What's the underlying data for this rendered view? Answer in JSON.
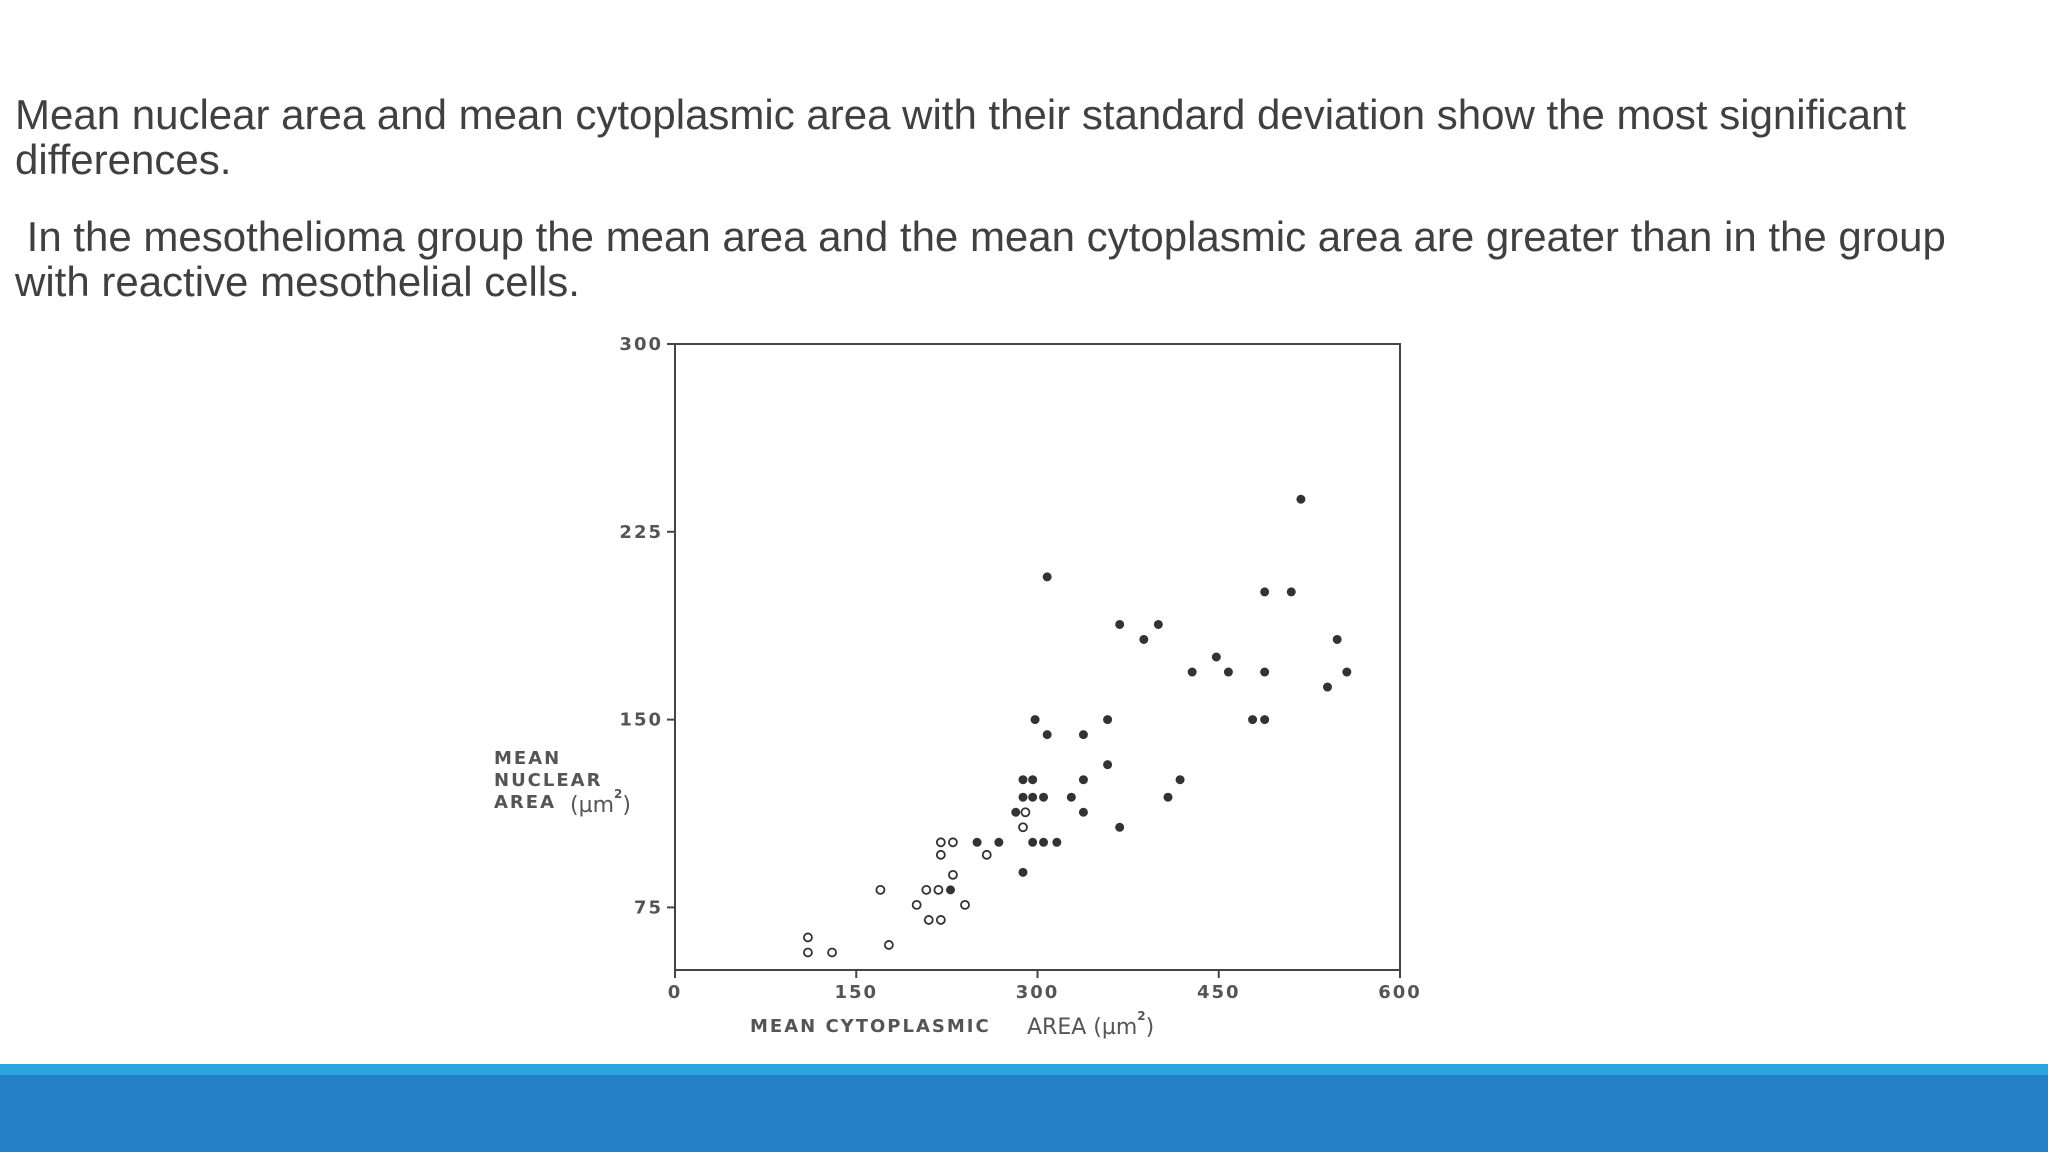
{
  "slide": {
    "paragraphs": [
      "Mean nuclear area and mean cytoplasmic area with their standard deviation show the most significant differences.",
      " In the mesothelioma group the mean area and the mean cytoplasmic area are greater than in the group with reactive mesothelial cells."
    ]
  },
  "colors": {
    "text": "#404040",
    "footer_light": "#28a5de",
    "footer_dark": "#2580c6",
    "marker": "#333333"
  },
  "chart_data": {
    "type": "scatter",
    "title": "",
    "xlabel": "MEAN CYTOPLASMIC",
    "xlabel_unit": "AREA (µm",
    "xlabel_unit_close": ")",
    "ylabel_lines": [
      "MEAN",
      "NUCLEAR",
      "AREA"
    ],
    "ylabel_unit": "(µm",
    "ylabel_unit_close": ")",
    "unit_superscript": "2",
    "xlim": [
      0,
      600
    ],
    "ylim": [
      50,
      300
    ],
    "x_ticks": [
      0,
      150,
      300,
      450,
      600
    ],
    "x_tick_labels": [
      "0",
      "150",
      "300",
      "450",
      "600"
    ],
    "y_ticks": [
      75,
      150,
      225,
      300
    ],
    "y_tick_labels": [
      "75",
      "150",
      "225",
      "300"
    ],
    "grid": false,
    "legend": "none",
    "series": [
      {
        "marker": "open-circle",
        "points": [
          [
            110,
            63
          ],
          [
            110,
            57
          ],
          [
            130,
            57
          ],
          [
            177,
            60
          ],
          [
            170,
            82
          ],
          [
            200,
            76
          ],
          [
            208,
            82
          ],
          [
            210,
            70
          ],
          [
            218,
            82
          ],
          [
            220,
            70
          ],
          [
            220,
            96
          ],
          [
            220,
            101
          ],
          [
            230,
            101
          ],
          [
            230,
            88
          ],
          [
            240,
            76
          ],
          [
            258,
            96
          ],
          [
            288,
            107
          ],
          [
            290,
            113
          ]
        ]
      },
      {
        "marker": "filled-circle",
        "points": [
          [
            228,
            82
          ],
          [
            250,
            101
          ],
          [
            268,
            101
          ],
          [
            282,
            113
          ],
          [
            288,
            89
          ],
          [
            288,
            126
          ],
          [
            296,
            126
          ],
          [
            288,
            119
          ],
          [
            296,
            119
          ],
          [
            305,
            119
          ],
          [
            296,
            101
          ],
          [
            305,
            101
          ],
          [
            316,
            101
          ],
          [
            298,
            150
          ],
          [
            308,
            144
          ],
          [
            308,
            207
          ],
          [
            328,
            119
          ],
          [
            338,
            113
          ],
          [
            338,
            126
          ],
          [
            338,
            144
          ],
          [
            358,
            132
          ],
          [
            358,
            150
          ],
          [
            368,
            107
          ],
          [
            368,
            188
          ],
          [
            388,
            182
          ],
          [
            400,
            188
          ],
          [
            408,
            119
          ],
          [
            418,
            126
          ],
          [
            428,
            169
          ],
          [
            448,
            175
          ],
          [
            458,
            169
          ],
          [
            478,
            150
          ],
          [
            488,
            150
          ],
          [
            488,
            169
          ],
          [
            488,
            201
          ],
          [
            510,
            201
          ],
          [
            518,
            238
          ],
          [
            540,
            163
          ],
          [
            548,
            182
          ],
          [
            556,
            169
          ]
        ]
      }
    ]
  }
}
